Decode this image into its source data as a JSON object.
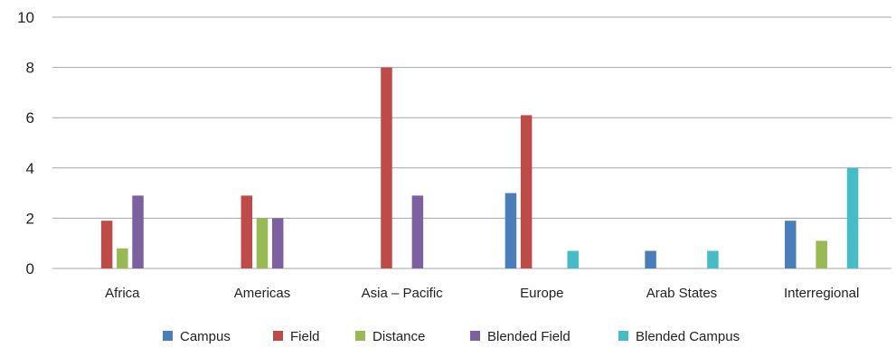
{
  "chart_data": {
    "type": "bar",
    "title": "",
    "xlabel": "",
    "ylabel": "",
    "ylim": [
      0,
      10
    ],
    "yticks": [
      "0",
      "2",
      "4",
      "6",
      "8",
      "10"
    ],
    "grid": "horizontal",
    "legend_position": "bottom",
    "categories": [
      "Africa",
      "Americas",
      "Asia – Pacific",
      "Europe",
      "Arab States",
      "Interregional"
    ],
    "series": [
      {
        "name": "Campus",
        "color": "#4a7ebb",
        "values": [
          0,
          0,
          0,
          3,
          0.7,
          1.9
        ]
      },
      {
        "name": "Field",
        "color": "#be4b48",
        "values": [
          1.9,
          2.9,
          8,
          6.1,
          0,
          0
        ]
      },
      {
        "name": "Distance",
        "color": "#98b954",
        "values": [
          0.8,
          2,
          0,
          0,
          0,
          1.1
        ]
      },
      {
        "name": "Blended Field",
        "color": "#7d60a0",
        "values": [
          2.9,
          2,
          2.9,
          0,
          0,
          0
        ]
      },
      {
        "name": "Blended Campus",
        "color": "#46bdc6",
        "values": [
          0,
          0,
          0,
          0.7,
          0.7,
          4
        ]
      }
    ]
  }
}
